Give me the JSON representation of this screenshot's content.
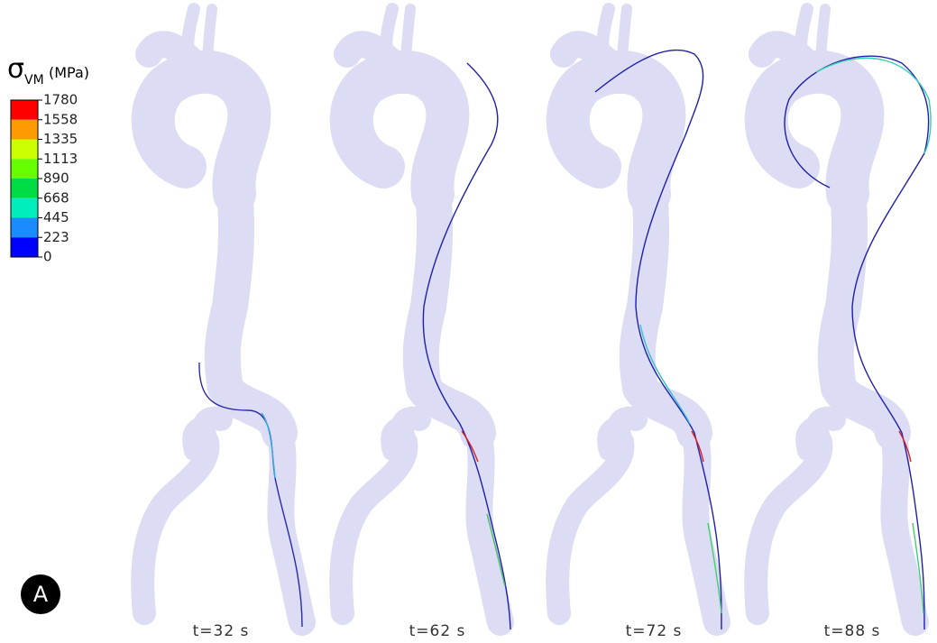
{
  "legend": {
    "symbol": "σ",
    "subscript": "VM",
    "unit": "(MPa)",
    "levels": [
      1780,
      1558,
      1335,
      1113,
      890,
      668,
      445,
      223,
      0
    ],
    "colors": [
      "#ff0000",
      "#ff9a00",
      "#ccff00",
      "#66ff00",
      "#00dd44",
      "#00eebb",
      "#1a8cff",
      "#0000ff"
    ]
  },
  "panels": [
    {
      "label": "t=32 s"
    },
    {
      "label": "t=62 s"
    },
    {
      "label": "t=72 s"
    },
    {
      "label": "t=88 s"
    }
  ],
  "badge": "A"
}
